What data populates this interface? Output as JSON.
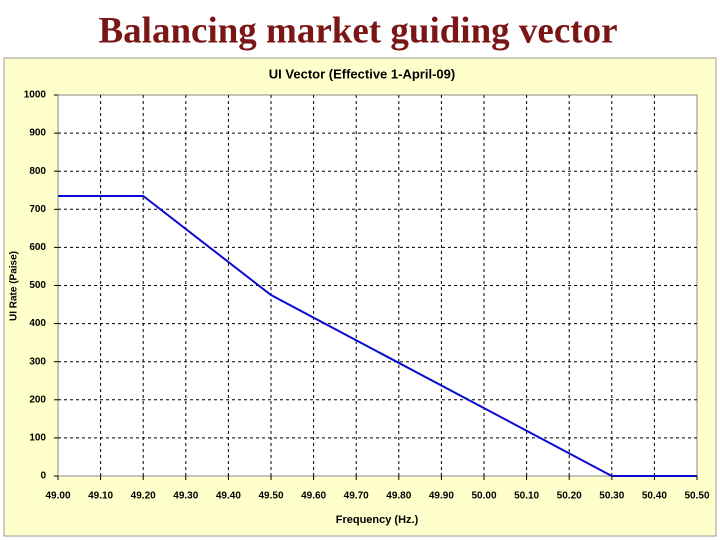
{
  "slide": {
    "title": "Balancing market guiding vector"
  },
  "chart_data": {
    "type": "line",
    "title": "UI Vector (Effective 1-April-09)",
    "x_label": "Frequency (Hz.)",
    "y_label": "UI Rate (Paise)",
    "x": [
      49.0,
      49.2,
      49.5,
      50.3,
      50.5
    ],
    "values": [
      735,
      735,
      475,
      0,
      0
    ],
    "color": "#0a0ad0",
    "xlim": [
      49.0,
      50.5
    ],
    "ylim": [
      0,
      1000
    ],
    "xticks": [
      {
        "value": 49.0,
        "label": "49.00"
      },
      {
        "value": 49.1,
        "label": "49.10"
      },
      {
        "value": 49.2,
        "label": "49.20"
      },
      {
        "value": 49.3,
        "label": "49.30"
      },
      {
        "value": 49.4,
        "label": "49.40"
      },
      {
        "value": 49.5,
        "label": "49.50"
      },
      {
        "value": 49.6,
        "label": "49.60"
      },
      {
        "value": 49.7,
        "label": "49.70"
      },
      {
        "value": 49.8,
        "label": "49.80"
      },
      {
        "value": 49.9,
        "label": "49.90"
      },
      {
        "value": 50.0,
        "label": "50.00"
      },
      {
        "value": 50.1,
        "label": "50.10"
      },
      {
        "value": 50.2,
        "label": "50.20"
      },
      {
        "value": 50.3,
        "label": "50.30"
      },
      {
        "value": 50.4,
        "label": "50.40"
      },
      {
        "value": 50.5,
        "label": "50.50"
      }
    ],
    "yticks": [
      0,
      100,
      200,
      300,
      400,
      500,
      600,
      700,
      800,
      900,
      1000
    ],
    "grid": true
  }
}
